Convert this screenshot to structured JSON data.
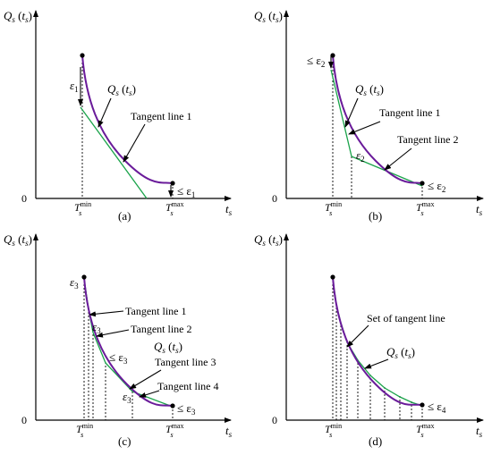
{
  "panels": [
    {
      "id": "a",
      "caption": "(a)",
      "q_var": "Q",
      "q_sub": "s",
      "q_arg": "t",
      "q_arg_sub": "s",
      "x_var": "t",
      "x_sub": "s",
      "zero": "0",
      "tmin_main": "T",
      "tmin_sub": "s",
      "tmin_sup": "min",
      "tmax_main": "T",
      "tmax_sub": "s",
      "tmax_sup": "max",
      "labels": {
        "eps": "ε",
        "eps_sub": "1",
        "tan1": "Tangent line 1",
        "end_le": "≤ ε",
        "end_sub": "1"
      }
    },
    {
      "id": "b",
      "caption": "(b)",
      "q_var": "Q",
      "q_sub": "s",
      "q_arg": "t",
      "q_arg_sub": "s",
      "x_var": "t",
      "x_sub": "s",
      "zero": "0",
      "tmin_main": "T",
      "tmin_sub": "s",
      "tmin_sup": "min",
      "tmax_main": "T",
      "tmax_sub": "s",
      "tmax_sup": "max",
      "labels": {
        "start_le": "≤ ε",
        "start_sub": "2",
        "tan1": "Tangent line 1",
        "tan2": "Tangent line 2",
        "eps": "ε",
        "eps_sub": "2",
        "end_le": "≤ ε",
        "end_sub": "2"
      }
    },
    {
      "id": "c",
      "caption": "(c)",
      "q_var": "Q",
      "q_sub": "s",
      "q_arg": "t",
      "q_arg_sub": "s",
      "x_var": "t",
      "x_sub": "s",
      "zero": "0",
      "tmin_main": "T",
      "tmin_sub": "s",
      "tmin_sup": "min",
      "tmax_main": "T",
      "tmax_sub": "s",
      "tmax_sup": "max",
      "labels": {
        "eps_start": "ε",
        "eps_start_sub": "3",
        "tan1": "Tangent line 1",
        "eps_mid": "ε",
        "eps_mid_sub": "3",
        "tan2": "Tangent line 2",
        "le_mid": "≤ ε",
        "le_mid_sub": "3",
        "tan3": "Tangent line 3",
        "eps_low": "ε",
        "eps_low_sub": "3",
        "tan4": "Tangent line 4",
        "end_le": "≤ ε",
        "end_sub": "3"
      }
    },
    {
      "id": "d",
      "caption": "(d)",
      "q_var": "Q",
      "q_sub": "s",
      "q_arg": "t",
      "q_arg_sub": "s",
      "x_var": "t",
      "x_sub": "s",
      "zero": "0",
      "tmin_main": "T",
      "tmin_sub": "s",
      "tmin_sup": "min",
      "tmax_main": "T",
      "tmax_sub": "s",
      "tmax_sup": "max",
      "labels": {
        "set": "Set of tangent line",
        "end_le": "≤ ε",
        "end_sub": "4"
      }
    }
  ]
}
